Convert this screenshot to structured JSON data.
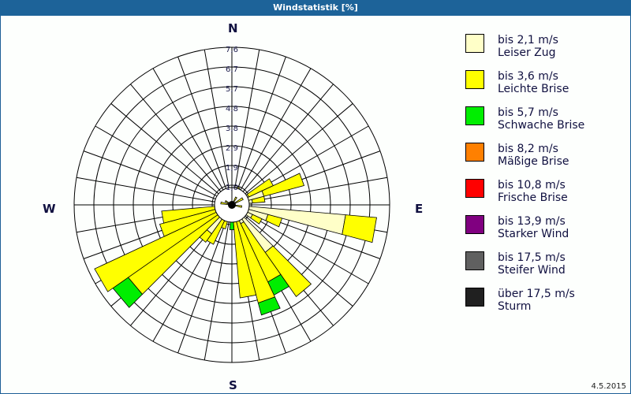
{
  "window": {
    "title": "Windstatistik [%]"
  },
  "footer": {
    "date": "4.5.2015"
  },
  "directions": {
    "n": "N",
    "e": "E",
    "s": "S",
    "w": "W"
  },
  "legend": [
    {
      "speed": "bis 2,1 m/s",
      "name": "Leiser Zug",
      "color": "#ffffc8"
    },
    {
      "speed": "bis 3,6 m/s",
      "name": "Leichte Brise",
      "color": "#ffff00"
    },
    {
      "speed": "bis 5,7 m/s",
      "name": "Schwache Brise",
      "color": "#00ee00"
    },
    {
      "speed": "bis 8,2 m/s",
      "name": "Mäßige Brise",
      "color": "#ff8000"
    },
    {
      "speed": "bis 10,8 m/s",
      "name": "Frische Brise",
      "color": "#ff0000"
    },
    {
      "speed": "bis 13,9 m/s",
      "name": "Starker Wind",
      "color": "#800080"
    },
    {
      "speed": "bis 17,5 m/s",
      "name": "Steifer Wind",
      "color": "#606060"
    },
    {
      "speed": "über 17,5 m/s",
      "name": "Sturm",
      "color": "#202020"
    }
  ],
  "chart_data": {
    "type": "wind-rose",
    "title": "Windstatistik [%]",
    "radial_ticks": [
      "1,0",
      "1,9",
      "2,9",
      "3,8",
      "4,8",
      "5,7",
      "6,7",
      "7,6"
    ],
    "radial_max": 7.6,
    "sector_width_deg": 10,
    "series": [
      "Leiser Zug",
      "Leichte Brise",
      "Schwache Brise"
    ],
    "sectors": [
      {
        "dir": 20,
        "values": [
          0.6,
          0.3,
          0
        ]
      },
      {
        "dir": 60,
        "values": [
          0.9,
          1.3,
          0
        ]
      },
      {
        "dir": 70,
        "values": [
          1.6,
          2.0,
          0
        ]
      },
      {
        "dir": 80,
        "values": [
          1.0,
          0.6,
          0
        ]
      },
      {
        "dir": 100,
        "values": [
          5.5,
          1.5,
          0
        ]
      },
      {
        "dir": 110,
        "values": [
          1.8,
          0.7,
          0
        ]
      },
      {
        "dir": 120,
        "values": [
          1.1,
          0.5,
          0
        ]
      },
      {
        "dir": 140,
        "values": [
          2.8,
          2.6,
          0
        ]
      },
      {
        "dir": 150,
        "values": [
          1.0,
          3.1,
          0.7
        ]
      },
      {
        "dir": 160,
        "values": [
          0.6,
          4.3,
          0.6
        ]
      },
      {
        "dir": 170,
        "values": [
          0.4,
          4.1,
          0
        ]
      },
      {
        "dir": 180,
        "values": [
          0.4,
          0.2,
          0.6
        ]
      },
      {
        "dir": 200,
        "values": [
          0.4,
          0.8,
          0
        ]
      },
      {
        "dir": 210,
        "values": [
          0.6,
          1.5,
          0
        ]
      },
      {
        "dir": 220,
        "values": [
          1.7,
          0.5,
          0
        ]
      },
      {
        "dir": 230,
        "values": [
          0.8,
          5.3,
          0.9
        ]
      },
      {
        "dir": 240,
        "values": [
          0.6,
          6.7,
          0
        ]
      },
      {
        "dir": 250,
        "values": [
          0.5,
          3.1,
          0
        ]
      },
      {
        "dir": 260,
        "values": [
          0.5,
          2.9,
          0
        ]
      },
      {
        "dir": 290,
        "values": [
          0.3,
          0.3,
          0
        ]
      },
      {
        "dir": 340,
        "values": [
          0.3,
          0.2,
          0
        ]
      }
    ]
  }
}
